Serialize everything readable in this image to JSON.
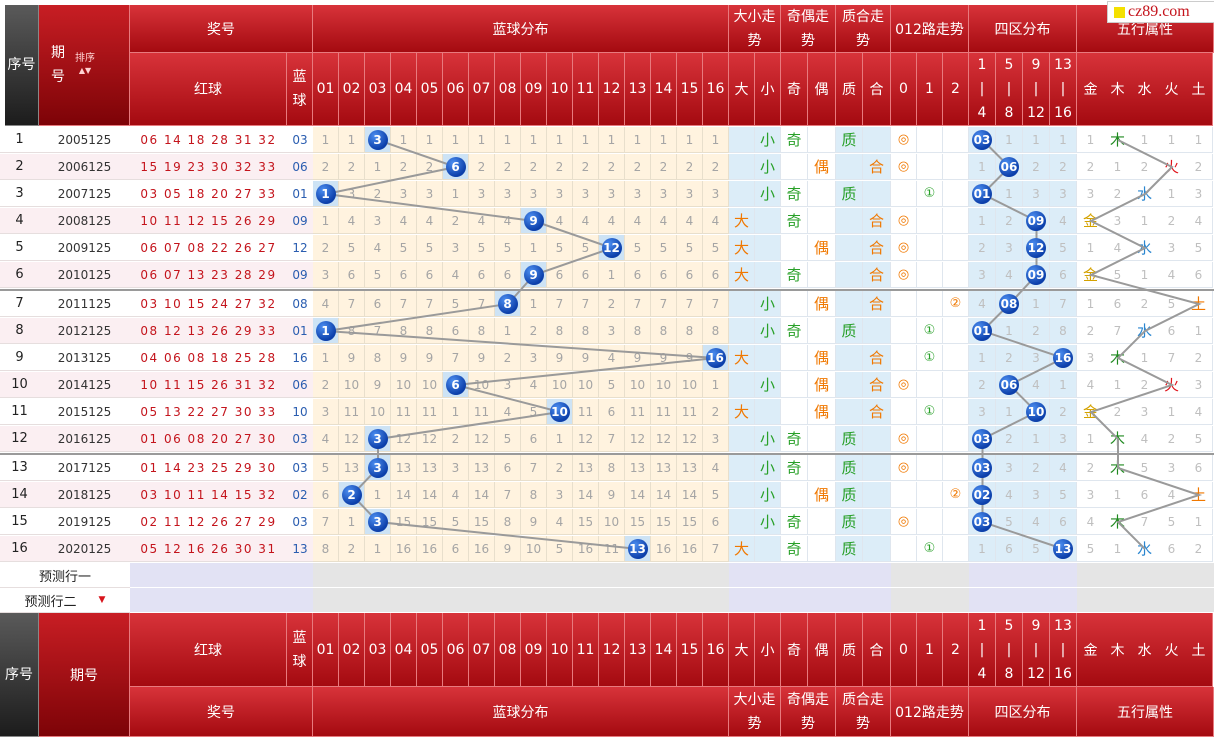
{
  "site_badge": "cz89.com",
  "sort_label": "排序",
  "headers": {
    "seq": "序号",
    "period": "期号",
    "prize": "奖号",
    "red_ball": "红球",
    "blue_ball": "蓝球",
    "blue_dist": "蓝球分布",
    "size_trend": "大小走势",
    "parity_trend": "奇偶走势",
    "prime_trend": "质合走势",
    "road012": "012路走势",
    "zone4": "四区分布",
    "wuxing": "五行属性",
    "blue_nums": [
      "01",
      "02",
      "03",
      "04",
      "05",
      "06",
      "07",
      "08",
      "09",
      "10",
      "11",
      "12",
      "13",
      "14",
      "15",
      "16"
    ],
    "size_cols": [
      "大",
      "小"
    ],
    "parity_cols": [
      "奇",
      "偶"
    ],
    "prime_cols": [
      "质",
      "合"
    ],
    "road_cols": [
      "0",
      "1",
      "2"
    ],
    "zone_cols": [
      [
        "1",
        "|",
        "4"
      ],
      [
        "5",
        "|",
        "8"
      ],
      [
        "9",
        "|",
        "12"
      ],
      [
        "13",
        "|",
        "16"
      ]
    ],
    "wuxing_cols": [
      "金",
      "木",
      "水",
      "火",
      "土"
    ]
  },
  "rows": [
    {
      "seq": "1",
      "period": "2005125",
      "red": "06 14 18 28 31 32",
      "blue": "03",
      "dist": [
        "1",
        "1",
        "3",
        "1",
        "1",
        "1",
        "1",
        "1",
        "1",
        "1",
        "1",
        "1",
        "1",
        "1",
        "1",
        "1"
      ],
      "size": [
        "",
        "小"
      ],
      "parity": [
        "奇",
        ""
      ],
      "prime": [
        "质",
        ""
      ],
      "road": [
        "◎",
        "",
        ""
      ],
      "zone": [
        "03",
        "1",
        "1",
        "1"
      ],
      "wx": [
        "1",
        "木",
        "1",
        "1",
        "1"
      ]
    },
    {
      "seq": "2",
      "period": "2006125",
      "red": "15 19 23 30 32 33",
      "blue": "06",
      "dist": [
        "2",
        "2",
        "1",
        "2",
        "2",
        "6",
        "2",
        "2",
        "2",
        "2",
        "2",
        "2",
        "2",
        "2",
        "2",
        "2"
      ],
      "size": [
        "",
        "小"
      ],
      "parity": [
        "",
        "偶"
      ],
      "prime": [
        "",
        "合"
      ],
      "road": [
        "◎",
        "",
        ""
      ],
      "zone": [
        "1",
        "06",
        "2",
        "2"
      ],
      "wx": [
        "2",
        "1",
        "2",
        "火",
        "2"
      ]
    },
    {
      "seq": "3",
      "period": "2007125",
      "red": "03 05 18 20 27 33",
      "blue": "01",
      "dist": [
        "1",
        "3",
        "2",
        "3",
        "3",
        "1",
        "3",
        "3",
        "3",
        "3",
        "3",
        "3",
        "3",
        "3",
        "3",
        "3"
      ],
      "size": [
        "",
        "小"
      ],
      "parity": [
        "奇",
        ""
      ],
      "prime": [
        "质",
        ""
      ],
      "road": [
        "",
        "①",
        ""
      ],
      "zone": [
        "01",
        "1",
        "3",
        "3"
      ],
      "wx": [
        "3",
        "2",
        "水",
        "1",
        "3"
      ]
    },
    {
      "seq": "4",
      "period": "2008125",
      "red": "10 11 12 15 26 29",
      "blue": "09",
      "dist": [
        "1",
        "4",
        "3",
        "4",
        "4",
        "2",
        "4",
        "4",
        "9",
        "4",
        "4",
        "4",
        "4",
        "4",
        "4",
        "4"
      ],
      "size": [
        "大",
        ""
      ],
      "parity": [
        "奇",
        ""
      ],
      "prime": [
        "",
        "合"
      ],
      "road": [
        "◎",
        "",
        ""
      ],
      "zone": [
        "1",
        "2",
        "09",
        "4"
      ],
      "wx": [
        "金",
        "3",
        "1",
        "2",
        "4"
      ]
    },
    {
      "seq": "5",
      "period": "2009125",
      "red": "06 07 08 22 26 27",
      "blue": "12",
      "dist": [
        "2",
        "5",
        "4",
        "5",
        "5",
        "3",
        "5",
        "5",
        "1",
        "5",
        "5",
        "12",
        "5",
        "5",
        "5",
        "5"
      ],
      "size": [
        "大",
        ""
      ],
      "parity": [
        "",
        "偶"
      ],
      "prime": [
        "",
        "合"
      ],
      "road": [
        "◎",
        "",
        ""
      ],
      "zone": [
        "2",
        "3",
        "12",
        "5"
      ],
      "wx": [
        "1",
        "4",
        "水",
        "3",
        "5"
      ]
    },
    {
      "seq": "6",
      "period": "2010125",
      "red": "06 07 13 23 28 29",
      "blue": "09",
      "dist": [
        "3",
        "6",
        "5",
        "6",
        "6",
        "4",
        "6",
        "6",
        "9",
        "6",
        "6",
        "1",
        "6",
        "6",
        "6",
        "6"
      ],
      "size": [
        "大",
        ""
      ],
      "parity": [
        "奇",
        ""
      ],
      "prime": [
        "",
        "合"
      ],
      "road": [
        "◎",
        "",
        ""
      ],
      "zone": [
        "3",
        "4",
        "09",
        "6"
      ],
      "wx": [
        "金",
        "5",
        "1",
        "4",
        "6"
      ]
    },
    {
      "seq": "7",
      "period": "2011125",
      "red": "03 10 15 24 27 32",
      "blue": "08",
      "dist": [
        "4",
        "7",
        "6",
        "7",
        "7",
        "5",
        "7",
        "8",
        "1",
        "7",
        "7",
        "2",
        "7",
        "7",
        "7",
        "7"
      ],
      "size": [
        "",
        "小"
      ],
      "parity": [
        "",
        "偶"
      ],
      "prime": [
        "",
        "合"
      ],
      "road": [
        "",
        "",
        "②"
      ],
      "zone": [
        "4",
        "08",
        "1",
        "7"
      ],
      "wx": [
        "1",
        "6",
        "2",
        "5",
        "土"
      ]
    },
    {
      "seq": "8",
      "period": "2012125",
      "red": "08 12 13 26 29 33",
      "blue": "01",
      "dist": [
        "1",
        "8",
        "7",
        "8",
        "8",
        "6",
        "8",
        "1",
        "2",
        "8",
        "8",
        "3",
        "8",
        "8",
        "8",
        "8"
      ],
      "size": [
        "",
        "小"
      ],
      "parity": [
        "奇",
        ""
      ],
      "prime": [
        "质",
        ""
      ],
      "road": [
        "",
        "①",
        ""
      ],
      "zone": [
        "01",
        "1",
        "2",
        "8"
      ],
      "wx": [
        "2",
        "7",
        "水",
        "6",
        "1"
      ]
    },
    {
      "seq": "9",
      "period": "2013125",
      "red": "04 06 08 18 25 28",
      "blue": "16",
      "dist": [
        "1",
        "9",
        "8",
        "9",
        "9",
        "7",
        "9",
        "2",
        "3",
        "9",
        "9",
        "4",
        "9",
        "9",
        "9",
        "16"
      ],
      "size": [
        "大",
        ""
      ],
      "parity": [
        "",
        "偶"
      ],
      "prime": [
        "",
        "合"
      ],
      "road": [
        "",
        "①",
        ""
      ],
      "zone": [
        "1",
        "2",
        "3",
        "16"
      ],
      "wx": [
        "3",
        "木",
        "1",
        "7",
        "2"
      ]
    },
    {
      "seq": "10",
      "period": "2014125",
      "red": "10 11 15 26 31 32",
      "blue": "06",
      "dist": [
        "2",
        "10",
        "9",
        "10",
        "10",
        "6",
        "10",
        "3",
        "4",
        "10",
        "10",
        "5",
        "10",
        "10",
        "10",
        "1"
      ],
      "size": [
        "",
        "小"
      ],
      "parity": [
        "",
        "偶"
      ],
      "prime": [
        "",
        "合"
      ],
      "road": [
        "◎",
        "",
        ""
      ],
      "zone": [
        "2",
        "06",
        "4",
        "1"
      ],
      "wx": [
        "4",
        "1",
        "2",
        "火",
        "3"
      ]
    },
    {
      "seq": "11",
      "period": "2015125",
      "red": "05 13 22 27 30 33",
      "blue": "10",
      "dist": [
        "3",
        "11",
        "10",
        "11",
        "11",
        "1",
        "11",
        "4",
        "5",
        "10",
        "11",
        "6",
        "11",
        "11",
        "11",
        "2"
      ],
      "size": [
        "大",
        ""
      ],
      "parity": [
        "",
        "偶"
      ],
      "prime": [
        "",
        "合"
      ],
      "road": [
        "",
        "①",
        ""
      ],
      "zone": [
        "3",
        "1",
        "10",
        "2"
      ],
      "wx": [
        "金",
        "2",
        "3",
        "1",
        "4"
      ]
    },
    {
      "seq": "12",
      "period": "2016125",
      "red": "01 06 08 20 27 30",
      "blue": "03",
      "dist": [
        "4",
        "12",
        "3",
        "12",
        "12",
        "2",
        "12",
        "5",
        "6",
        "1",
        "12",
        "7",
        "12",
        "12",
        "12",
        "3"
      ],
      "size": [
        "",
        "小"
      ],
      "parity": [
        "奇",
        ""
      ],
      "prime": [
        "质",
        ""
      ],
      "road": [
        "◎",
        "",
        ""
      ],
      "zone": [
        "03",
        "2",
        "1",
        "3"
      ],
      "wx": [
        "1",
        "木",
        "4",
        "2",
        "5"
      ]
    },
    {
      "seq": "13",
      "period": "2017125",
      "red": "01 14 23 25 29 30",
      "blue": "03",
      "dist": [
        "5",
        "13",
        "3",
        "13",
        "13",
        "3",
        "13",
        "6",
        "7",
        "2",
        "13",
        "8",
        "13",
        "13",
        "13",
        "4"
      ],
      "size": [
        "",
        "小"
      ],
      "parity": [
        "奇",
        ""
      ],
      "prime": [
        "质",
        ""
      ],
      "road": [
        "◎",
        "",
        ""
      ],
      "zone": [
        "03",
        "3",
        "2",
        "4"
      ],
      "wx": [
        "2",
        "木",
        "5",
        "3",
        "6"
      ]
    },
    {
      "seq": "14",
      "period": "2018125",
      "red": "03 10 11 14 15 32",
      "blue": "02",
      "dist": [
        "6",
        "2",
        "1",
        "14",
        "14",
        "4",
        "14",
        "7",
        "8",
        "3",
        "14",
        "9",
        "14",
        "14",
        "14",
        "5"
      ],
      "size": [
        "",
        "小"
      ],
      "parity": [
        "",
        "偶"
      ],
      "prime": [
        "质",
        ""
      ],
      "road": [
        "",
        "",
        "②"
      ],
      "zone": [
        "02",
        "4",
        "3",
        "5"
      ],
      "wx": [
        "3",
        "1",
        "6",
        "4",
        "土"
      ]
    },
    {
      "seq": "15",
      "period": "2019125",
      "red": "02 11 12 26 27 29",
      "blue": "03",
      "dist": [
        "7",
        "1",
        "3",
        "15",
        "15",
        "5",
        "15",
        "8",
        "9",
        "4",
        "15",
        "10",
        "15",
        "15",
        "15",
        "6"
      ],
      "size": [
        "",
        "小"
      ],
      "parity": [
        "奇",
        ""
      ],
      "prime": [
        "质",
        ""
      ],
      "road": [
        "◎",
        "",
        ""
      ],
      "zone": [
        "03",
        "5",
        "4",
        "6"
      ],
      "wx": [
        "4",
        "木",
        "7",
        "5",
        "1"
      ]
    },
    {
      "seq": "16",
      "period": "2020125",
      "red": "05 12 16 26 30 31",
      "blue": "13",
      "dist": [
        "8",
        "2",
        "1",
        "16",
        "16",
        "6",
        "16",
        "9",
        "10",
        "5",
        "16",
        "11",
        "13",
        "16",
        "16",
        "7"
      ],
      "size": [
        "大",
        ""
      ],
      "parity": [
        "奇",
        ""
      ],
      "prime": [
        "质",
        ""
      ],
      "road": [
        "",
        "①",
        ""
      ],
      "zone": [
        "1",
        "6",
        "5",
        "13"
      ],
      "wx": [
        "5",
        "1",
        "水",
        "6",
        "2"
      ]
    }
  ],
  "predict_rows": [
    "预测行一",
    "预测行二"
  ]
}
